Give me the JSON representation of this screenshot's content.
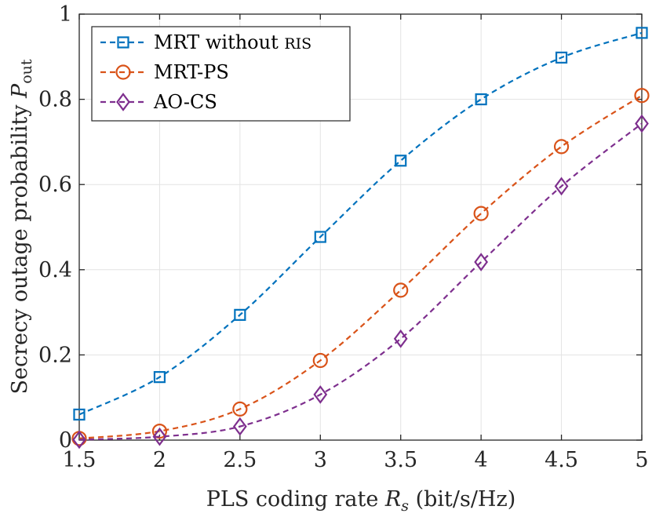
{
  "chart_data": {
    "type": "line",
    "title": "",
    "xlabel": {
      "prefix": "PLS coding rate ",
      "symbol": "R",
      "subscript": "s",
      "suffix": " (bit/s/Hz)"
    },
    "ylabel": {
      "prefix": "Secrecy outage probability ",
      "symbol": "P",
      "subscript": "out"
    },
    "x": [
      1.5,
      2,
      2.5,
      3,
      3.5,
      4,
      4.5,
      5
    ],
    "xlim": [
      1.5,
      5
    ],
    "ylim": [
      0,
      1
    ],
    "xticks": [
      "1.5",
      "2",
      "2.5",
      "3",
      "3.5",
      "4",
      "4.5",
      "5"
    ],
    "yticks": [
      "0",
      "0.2",
      "0.4",
      "0.6",
      "0.8",
      "1"
    ],
    "grid": true,
    "legend_position": "top-left",
    "series": [
      {
        "name": "MRT without RIS",
        "name_main": "MRT without ",
        "name_smallcaps": "RIS",
        "color": "#0072BD",
        "marker": "square",
        "line_style": "dashed",
        "values": [
          0.06,
          0.148,
          0.294,
          0.477,
          0.656,
          0.8,
          0.898,
          0.956
        ]
      },
      {
        "name": "MRT-PS",
        "name_main": "MRT-PS",
        "name_smallcaps": "",
        "color": "#D95319",
        "marker": "circle",
        "line_style": "dashed",
        "values": [
          0.004,
          0.021,
          0.073,
          0.187,
          0.352,
          0.532,
          0.689,
          0.809
        ]
      },
      {
        "name": "AO-CS",
        "name_main": "AO-CS",
        "name_smallcaps": "",
        "color": "#7E2F8E",
        "marker": "diamond",
        "line_style": "dashed",
        "values": [
          0.001,
          0.008,
          0.032,
          0.107,
          0.238,
          0.418,
          0.596,
          0.743
        ]
      }
    ]
  }
}
